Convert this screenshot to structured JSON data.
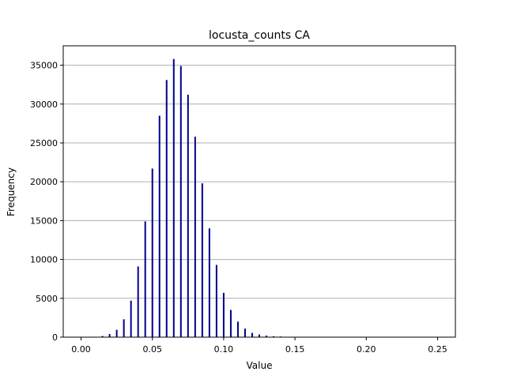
{
  "chart_data": {
    "type": "bar",
    "title": "locusta_counts CA",
    "xlabel": "Value",
    "ylabel": "Frequency",
    "xlim": [
      -0.0125,
      0.2625
    ],
    "ylim": [
      0,
      37500
    ],
    "xticks": [
      "0.00",
      "0.05",
      "0.10",
      "0.15",
      "0.20",
      "0.25"
    ],
    "yticks": [
      "0",
      "5000",
      "10000",
      "15000",
      "20000",
      "25000",
      "30000",
      "35000"
    ],
    "grid": "y-major",
    "bar_color": "#00008b",
    "grid_color": "#b0b0b0",
    "x": [
      0.015,
      0.02,
      0.025,
      0.03,
      0.035,
      0.04,
      0.045,
      0.05,
      0.055,
      0.06,
      0.065,
      0.07,
      0.075,
      0.08,
      0.085,
      0.09,
      0.095,
      0.1,
      0.105,
      0.11,
      0.115,
      0.12,
      0.125,
      0.13,
      0.135,
      0.14,
      0.145
    ],
    "values": [
      150,
      400,
      950,
      2300,
      4700,
      9100,
      14900,
      21700,
      28500,
      33100,
      35800,
      34900,
      31200,
      25800,
      19800,
      14000,
      9300,
      5700,
      3500,
      2000,
      1100,
      550,
      350,
      200,
      120,
      80,
      40
    ]
  }
}
